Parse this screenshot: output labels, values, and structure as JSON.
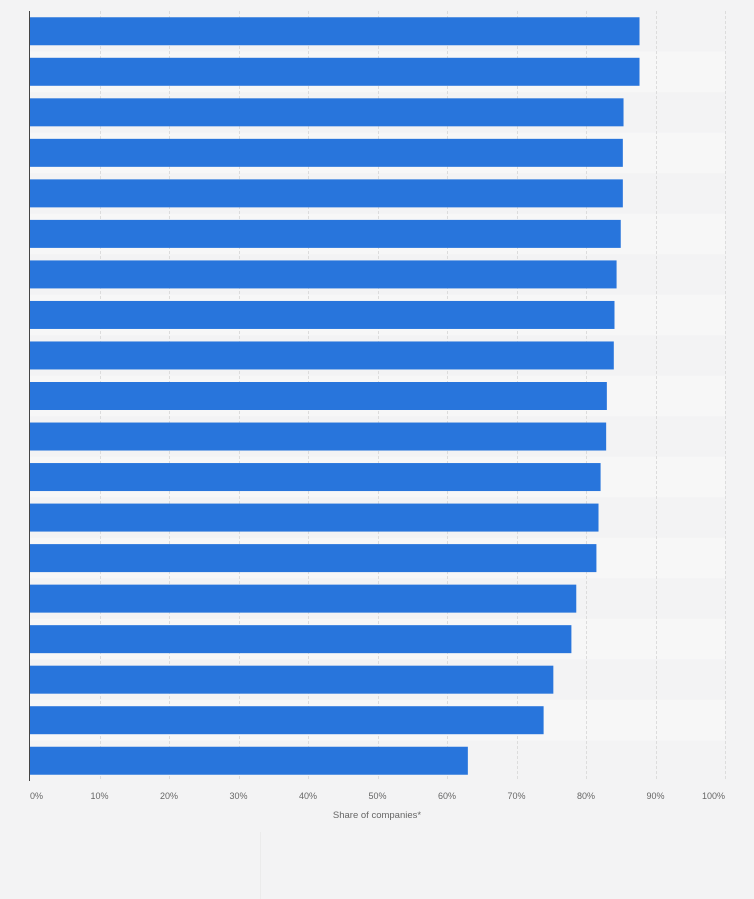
{
  "chart_data": {
    "type": "bar",
    "orientation": "horizontal",
    "categories": [
      "",
      "",
      "",
      "",
      "",
      "",
      "",
      "",
      "",
      "",
      "",
      "",
      "",
      "",
      "",
      "",
      "",
      "",
      ""
    ],
    "values": [
      87.7,
      87.7,
      85.4,
      85.3,
      85.3,
      85.0,
      84.4,
      84.1,
      84.0,
      83.0,
      82.9,
      82.1,
      81.8,
      81.5,
      78.6,
      77.9,
      75.3,
      73.9,
      63.0
    ],
    "x_ticks": [
      "0%",
      "10%",
      "20%",
      "30%",
      "40%",
      "50%",
      "60%",
      "70%",
      "80%",
      "90%",
      "100%"
    ],
    "xlim": [
      0,
      100
    ],
    "xlabel": "Share of companies*",
    "ylabel": "",
    "grid": true,
    "legend": "none",
    "bar_color": "#2875dc",
    "stripe_color": "#f7f7f7",
    "background_color": "#f3f3f4"
  }
}
